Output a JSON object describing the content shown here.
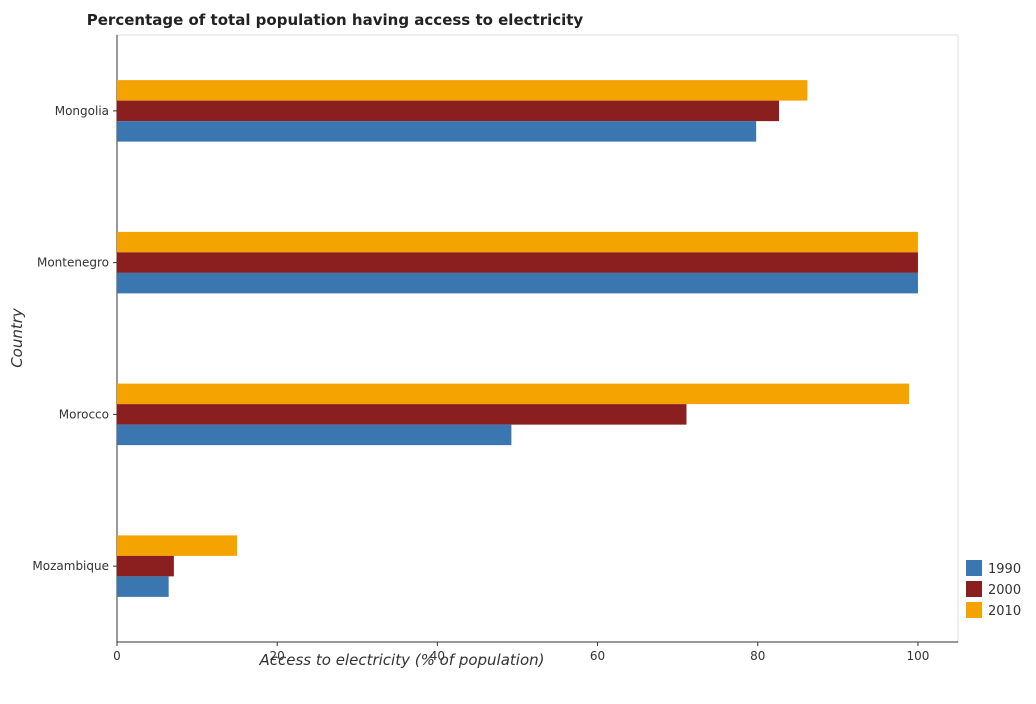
{
  "chart_data": {
    "type": "bar",
    "orientation": "horizontal",
    "title": "Percentage of total population having access to electricity",
    "xlabel": "Access to electricity (% of population)",
    "ylabel": "Country",
    "categories": [
      "Mongolia",
      "Montenegro",
      "Morocco",
      "Mozambique"
    ],
    "series": [
      {
        "name": "1990",
        "color": "#3a76b0",
        "values": [
          79.8,
          100,
          49.24,
          6.45
        ]
      },
      {
        "name": "2000",
        "color": "#8b1e1e",
        "values": [
          82.66,
          100,
          71.1,
          7.1
        ]
      },
      {
        "name": "2010",
        "color": "#f5a300",
        "values": [
          86.2,
          100,
          98.9,
          15.0
        ]
      }
    ],
    "xlim": [
      0,
      105
    ],
    "xticks": [
      0,
      20,
      40,
      60,
      80,
      100
    ],
    "grid": false,
    "legend_position": "bottom-right"
  }
}
